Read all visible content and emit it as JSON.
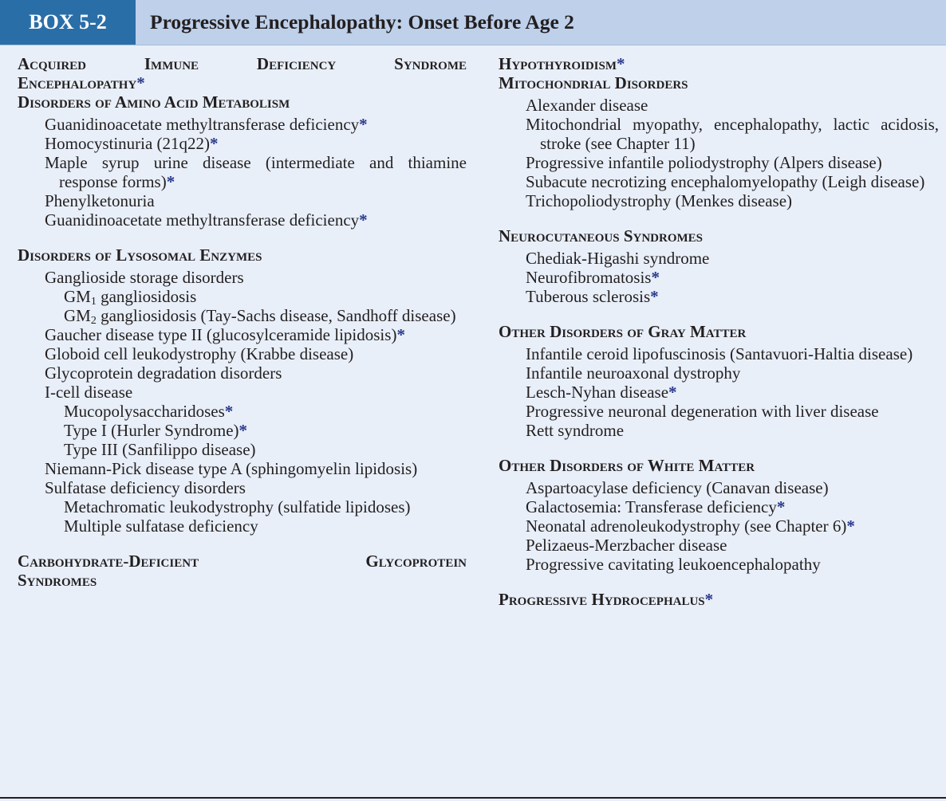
{
  "box": {
    "label": "BOX 5-2",
    "title": "Progressive Encephalopathy: Onset Before Age 2",
    "asterisk": "*"
  },
  "left": {
    "aids_line1": "Acquired Immune Deficiency Syndrome",
    "aids_line2": "Encephalopathy",
    "amino_heading": "Disorders of Amino Acid Metabolism",
    "amino_items": [
      "Guanidinoacetate methyltransferase deficiency",
      "Homocystinuria (21q22)",
      "Maple syrup urine disease (intermediate and thiamine response forms)",
      "Phenylketonuria",
      "Guanidinoacetate methyltransferase deficiency"
    ],
    "lyso_heading": "Disorders of Lysosomal Enzymes",
    "lyso_items": {
      "ganglioside": "Ganglioside storage disorders",
      "gm1": "GM",
      "gm1_sub": "1",
      "gm1_rest": " gangliosidosis",
      "gm2": "GM",
      "gm2_sub": "2",
      "gm2_rest": " gangliosidosis (Tay-Sachs disease, Sandhoff disease)",
      "gaucher": "Gaucher disease type II (glucosylceramide lipidosis)",
      "globoid": "Globoid cell leukodystrophy (Krabbe disease)",
      "glycoprotein": "Glycoprotein degradation disorders",
      "icell": "I-cell disease",
      "mucopoly": "Mucopolysaccharidoses",
      "type1": "Type I (Hurler Syndrome)",
      "type3": "Type III (Sanfilippo disease)",
      "niemann": "Niemann-Pick disease type A (sphingomyelin lipidosis)",
      "sulfatase": "Sulfatase deficiency disorders",
      "metachromatic": "Metachromatic leukodystrophy (sulfatide lipidoses)",
      "multiple": "Multiple sulfatase deficiency"
    },
    "carb_line1": "Carbohydrate-Deficient Glycoprotein",
    "carb_line2": "Syndromes"
  },
  "right": {
    "hypothyroidism": "Hypothyroidism",
    "mito_heading": "Mitochondrial Disorders",
    "mito_items": [
      "Alexander disease",
      "Mitochondrial myopathy, encephalopathy, lactic acidosis, stroke (see Chapter 11)",
      "Progressive infantile poliodystrophy (Alpers disease)",
      "Subacute necrotizing encephalomyelopathy (Leigh disease)",
      "Trichopoliodystrophy (Menkes disease)"
    ],
    "neuro_heading": "Neurocutaneous Syndromes",
    "neuro_items": [
      "Chediak-Higashi syndrome",
      "Neurofibromatosis",
      "Tuberous sclerosis"
    ],
    "gray_heading": "Other Disorders of Gray Matter",
    "gray_items": [
      "Infantile ceroid lipofuscinosis (Santavuori-Haltia disease)",
      "Infantile neuroaxonal dystrophy",
      "Lesch-Nyhan disease",
      "Progressive neuronal degeneration with liver disease",
      "Rett syndrome"
    ],
    "white_heading": "Other Disorders of White Matter",
    "white_items": [
      "Aspartoacylase deficiency (Canavan disease)",
      "Galactosemia: Transferase deficiency",
      "Neonatal adrenoleukodystrophy (see Chapter 6)",
      "Pelizaeus-Merzbacher disease",
      "Progressive cavitating leukoencephalopathy"
    ],
    "hydro_heading": "Progressive Hydrocephalus"
  }
}
